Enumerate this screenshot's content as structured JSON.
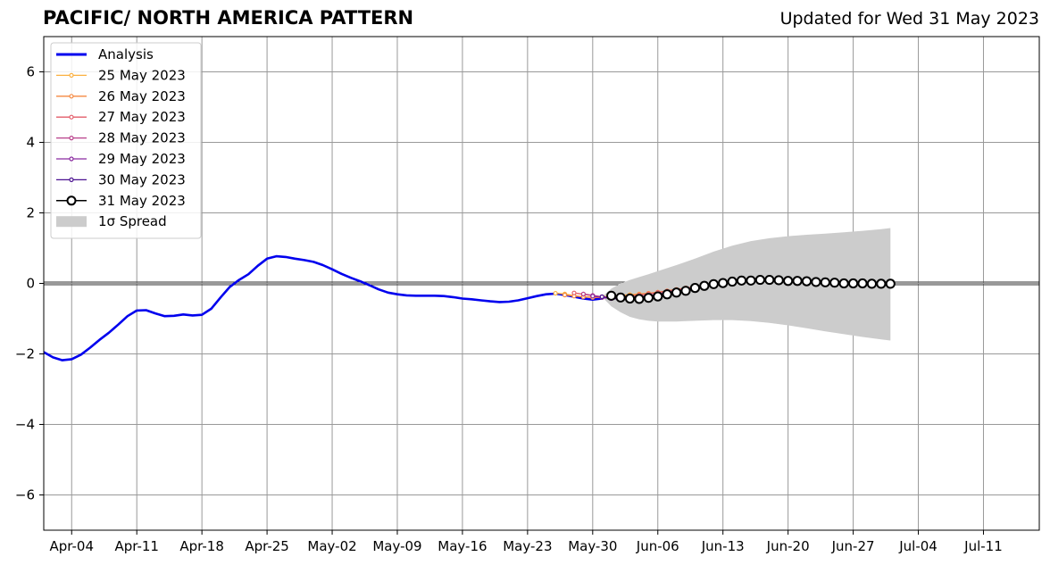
{
  "header": {
    "title": "PACIFIC/ NORTH AMERICA PATTERN",
    "updated": "Updated for Wed 31 May 2023"
  },
  "chart_data": {
    "type": "line",
    "title": "PACIFIC/ NORTH AMERICA PATTERN",
    "subtitle": "Updated for Wed 31 May 2023",
    "xlabel": "",
    "ylabel": "",
    "x_range": [
      "2023-04-01",
      "2023-07-17"
    ],
    "ylim": [
      -7,
      7
    ],
    "grid": true,
    "legend_position": "top-left",
    "x_ticks": [
      "Apr-04",
      "Apr-11",
      "Apr-18",
      "Apr-25",
      "May-02",
      "May-09",
      "May-16",
      "May-23",
      "May-30",
      "Jun-06",
      "Jun-13",
      "Jun-20",
      "Jun-27",
      "Jul-04",
      "Jul-11"
    ],
    "x_tick_dates": [
      "2023-04-04",
      "2023-04-11",
      "2023-04-18",
      "2023-04-25",
      "2023-05-02",
      "2023-05-09",
      "2023-05-16",
      "2023-05-23",
      "2023-05-30",
      "2023-06-06",
      "2023-06-13",
      "2023-06-20",
      "2023-06-27",
      "2023-07-04",
      "2023-07-11"
    ],
    "y_ticks": [
      -6,
      -4,
      -2,
      0,
      2,
      4,
      6
    ],
    "y_tick_labels": [
      "−6",
      "−4",
      "−2",
      "0",
      "2",
      "4",
      "6"
    ],
    "colors": {
      "analysis": "#0000ee",
      "forecast_obs": "#000000",
      "spread": "#cccccc",
      "grid": "#999999"
    },
    "legend": [
      {
        "label": "Analysis",
        "type": "line",
        "color": "#0000ee"
      },
      {
        "label": "25 May 2023",
        "type": "marker-line",
        "color": "#fbb040"
      },
      {
        "label": "26 May 2023",
        "type": "marker-line",
        "color": "#f58a42"
      },
      {
        "label": "27 May 2023",
        "type": "marker-line",
        "color": "#e35d6a"
      },
      {
        "label": "28 May 2023",
        "type": "marker-line",
        "color": "#b8408a"
      },
      {
        "label": "29 May 2023",
        "type": "marker-line",
        "color": "#8a2aa0"
      },
      {
        "label": "30 May 2023",
        "type": "marker-line",
        "color": "#4a1090"
      },
      {
        "label": "31 May 2023",
        "type": "circle-line",
        "color": "#000000"
      },
      {
        "label": "1σ Spread",
        "type": "patch",
        "color": "#cccccc"
      }
    ],
    "series": [
      {
        "name": "Analysis",
        "color": "#0000ee",
        "x": [
          "2023-04-01",
          "2023-04-02",
          "2023-04-03",
          "2023-04-04",
          "2023-04-05",
          "2023-04-06",
          "2023-04-07",
          "2023-04-08",
          "2023-04-09",
          "2023-04-10",
          "2023-04-11",
          "2023-04-12",
          "2023-04-13",
          "2023-04-14",
          "2023-04-15",
          "2023-04-16",
          "2023-04-17",
          "2023-04-18",
          "2023-04-19",
          "2023-04-20",
          "2023-04-21",
          "2023-04-22",
          "2023-04-23",
          "2023-04-24",
          "2023-04-25",
          "2023-04-26",
          "2023-04-27",
          "2023-04-28",
          "2023-04-29",
          "2023-04-30",
          "2023-05-01",
          "2023-05-02",
          "2023-05-03",
          "2023-05-04",
          "2023-05-05",
          "2023-05-06",
          "2023-05-07",
          "2023-05-08",
          "2023-05-09",
          "2023-05-10",
          "2023-05-11",
          "2023-05-12",
          "2023-05-13",
          "2023-05-14",
          "2023-05-15",
          "2023-05-16",
          "2023-05-17",
          "2023-05-18",
          "2023-05-19",
          "2023-05-20",
          "2023-05-21",
          "2023-05-22",
          "2023-05-23",
          "2023-05-24",
          "2023-05-25",
          "2023-05-26",
          "2023-05-27",
          "2023-05-28",
          "2023-05-29",
          "2023-05-30",
          "2023-05-31"
        ],
        "y": [
          -1.95,
          -2.1,
          -2.18,
          -2.15,
          -2.02,
          -1.82,
          -1.6,
          -1.4,
          -1.17,
          -0.93,
          -0.77,
          -0.76,
          -0.85,
          -0.93,
          -0.92,
          -0.88,
          -0.91,
          -0.89,
          -0.72,
          -0.4,
          -0.1,
          0.1,
          0.26,
          0.5,
          0.7,
          0.77,
          0.75,
          0.7,
          0.66,
          0.61,
          0.52,
          0.4,
          0.27,
          0.16,
          0.06,
          -0.05,
          -0.17,
          -0.26,
          -0.31,
          -0.34,
          -0.35,
          -0.35,
          -0.35,
          -0.36,
          -0.39,
          -0.43,
          -0.45,
          -0.48,
          -0.51,
          -0.53,
          -0.52,
          -0.48,
          -0.42,
          -0.36,
          -0.31,
          -0.29,
          -0.33,
          -0.38,
          -0.43,
          -0.46,
          -0.43
        ]
      },
      {
        "name": "25 May 2023",
        "color": "#fbb040",
        "x": [
          "2023-05-26",
          "2023-05-27",
          "2023-05-28",
          "2023-05-29",
          "2023-05-30",
          "2023-05-31",
          "2023-06-01",
          "2023-06-02",
          "2023-06-03",
          "2023-06-04",
          "2023-06-05",
          "2023-06-06",
          "2023-06-07",
          "2023-06-08",
          "2023-06-09",
          "2023-06-10",
          "2023-06-11",
          "2023-06-12",
          "2023-06-13",
          "2023-06-14",
          "2023-06-15",
          "2023-06-16",
          "2023-06-17",
          "2023-06-18"
        ],
        "y": [
          -0.28,
          -0.3,
          -0.35,
          -0.38,
          -0.39,
          -0.38,
          -0.36,
          -0.34,
          -0.32,
          -0.3,
          -0.28,
          -0.25,
          -0.22,
          -0.18,
          -0.14,
          -0.1,
          -0.06,
          -0.03,
          0.0,
          0.02,
          0.04,
          0.05,
          0.06,
          0.06
        ]
      },
      {
        "name": "26 May 2023",
        "color": "#f58a42",
        "x": [
          "2023-05-27",
          "2023-05-28",
          "2023-05-29",
          "2023-05-30",
          "2023-05-31",
          "2023-06-01",
          "2023-06-02",
          "2023-06-03",
          "2023-06-04",
          "2023-06-05",
          "2023-06-06",
          "2023-06-07",
          "2023-06-08",
          "2023-06-09",
          "2023-06-10",
          "2023-06-11",
          "2023-06-12",
          "2023-06-13",
          "2023-06-14",
          "2023-06-15",
          "2023-06-16",
          "2023-06-17",
          "2023-06-18",
          "2023-06-19"
        ],
        "y": [
          -0.33,
          -0.36,
          -0.38,
          -0.4,
          -0.4,
          -0.38,
          -0.36,
          -0.34,
          -0.31,
          -0.28,
          -0.25,
          -0.21,
          -0.17,
          -0.13,
          -0.09,
          -0.05,
          -0.02,
          0.01,
          0.03,
          0.05,
          0.06,
          0.07,
          0.07,
          0.07
        ]
      },
      {
        "name": "27 May 2023",
        "color": "#e35d6a",
        "x": [
          "2023-05-28",
          "2023-05-29",
          "2023-05-30",
          "2023-05-31",
          "2023-06-01",
          "2023-06-02",
          "2023-06-03",
          "2023-06-04",
          "2023-06-05",
          "2023-06-06",
          "2023-06-07",
          "2023-06-08",
          "2023-06-09",
          "2023-06-10",
          "2023-06-11",
          "2023-06-12",
          "2023-06-13",
          "2023-06-14",
          "2023-06-15",
          "2023-06-16",
          "2023-06-17",
          "2023-06-18",
          "2023-06-19",
          "2023-06-20"
        ],
        "y": [
          -0.27,
          -0.31,
          -0.35,
          -0.38,
          -0.39,
          -0.38,
          -0.36,
          -0.33,
          -0.3,
          -0.26,
          -0.22,
          -0.18,
          -0.14,
          -0.1,
          -0.06,
          -0.03,
          0.0,
          0.03,
          0.05,
          0.07,
          0.08,
          0.08,
          0.08,
          0.07
        ]
      },
      {
        "name": "28 May 2023",
        "color": "#b8408a",
        "x": [
          "2023-05-29",
          "2023-05-30",
          "2023-05-31",
          "2023-06-01",
          "2023-06-02",
          "2023-06-03",
          "2023-06-04",
          "2023-06-05",
          "2023-06-06",
          "2023-06-07",
          "2023-06-08",
          "2023-06-09",
          "2023-06-10",
          "2023-06-11",
          "2023-06-12",
          "2023-06-13",
          "2023-06-14",
          "2023-06-15",
          "2023-06-16",
          "2023-06-17",
          "2023-06-18",
          "2023-06-19",
          "2023-06-20",
          "2023-06-21"
        ],
        "y": [
          -0.3,
          -0.34,
          -0.38,
          -0.41,
          -0.42,
          -0.41,
          -0.38,
          -0.35,
          -0.31,
          -0.27,
          -0.22,
          -0.17,
          -0.12,
          -0.08,
          -0.04,
          0.0,
          0.03,
          0.06,
          0.08,
          0.09,
          0.09,
          0.09,
          0.08,
          0.07
        ]
      },
      {
        "name": "29 May 2023",
        "color": "#8a2aa0",
        "x": [
          "2023-05-30",
          "2023-05-31",
          "2023-06-01",
          "2023-06-02",
          "2023-06-03",
          "2023-06-04",
          "2023-06-05",
          "2023-06-06",
          "2023-06-07",
          "2023-06-08",
          "2023-06-09",
          "2023-06-10",
          "2023-06-11",
          "2023-06-12",
          "2023-06-13",
          "2023-06-14",
          "2023-06-15",
          "2023-06-16",
          "2023-06-17",
          "2023-06-18",
          "2023-06-19",
          "2023-06-20",
          "2023-06-21",
          "2023-06-22"
        ],
        "y": [
          -0.36,
          -0.4,
          -0.43,
          -0.44,
          -0.43,
          -0.4,
          -0.36,
          -0.31,
          -0.26,
          -0.21,
          -0.16,
          -0.11,
          -0.06,
          -0.02,
          0.02,
          0.05,
          0.08,
          0.09,
          0.1,
          0.1,
          0.09,
          0.08,
          0.07,
          0.06
        ]
      },
      {
        "name": "30 May 2023",
        "color": "#4a1090",
        "x": [
          "2023-05-31",
          "2023-06-01",
          "2023-06-02",
          "2023-06-03",
          "2023-06-04",
          "2023-06-05",
          "2023-06-06",
          "2023-06-07",
          "2023-06-08",
          "2023-06-09",
          "2023-06-10",
          "2023-06-11",
          "2023-06-12",
          "2023-06-13",
          "2023-06-14",
          "2023-06-15",
          "2023-06-16",
          "2023-06-17",
          "2023-06-18",
          "2023-06-19",
          "2023-06-20",
          "2023-06-21",
          "2023-06-22",
          "2023-06-23"
        ],
        "y": [
          -0.38,
          -0.42,
          -0.45,
          -0.46,
          -0.44,
          -0.4,
          -0.35,
          -0.29,
          -0.23,
          -0.17,
          -0.11,
          -0.06,
          -0.01,
          0.03,
          0.06,
          0.08,
          0.1,
          0.1,
          0.1,
          0.09,
          0.08,
          0.07,
          0.05,
          0.04
        ]
      },
      {
        "name": "31 May 2023",
        "color": "#000000",
        "x": [
          "2023-06-01",
          "2023-06-02",
          "2023-06-03",
          "2023-06-04",
          "2023-06-05",
          "2023-06-06",
          "2023-06-07",
          "2023-06-08",
          "2023-06-09",
          "2023-06-10",
          "2023-06-11",
          "2023-06-12",
          "2023-06-13",
          "2023-06-14",
          "2023-06-15",
          "2023-06-16",
          "2023-06-17",
          "2023-06-18",
          "2023-06-19",
          "2023-06-20",
          "2023-06-21",
          "2023-06-22",
          "2023-06-23",
          "2023-06-24",
          "2023-06-25",
          "2023-06-26",
          "2023-06-27",
          "2023-06-28",
          "2023-06-29",
          "2023-06-30",
          "2023-07-01"
        ],
        "y": [
          -0.35,
          -0.4,
          -0.43,
          -0.44,
          -0.41,
          -0.37,
          -0.31,
          -0.26,
          -0.21,
          -0.13,
          -0.07,
          -0.02,
          0.01,
          0.05,
          0.08,
          0.08,
          0.1,
          0.1,
          0.09,
          0.07,
          0.07,
          0.06,
          0.04,
          0.03,
          0.02,
          0.0,
          0.0,
          0.0,
          -0.01,
          -0.01,
          -0.01
        ]
      }
    ],
    "spread": {
      "name": "1σ Spread",
      "color": "#cccccc",
      "x": [
        "2023-05-31",
        "2023-06-01",
        "2023-06-02",
        "2023-06-03",
        "2023-06-04",
        "2023-06-05",
        "2023-06-06",
        "2023-06-08",
        "2023-06-10",
        "2023-06-12",
        "2023-06-14",
        "2023-06-16",
        "2023-06-18",
        "2023-06-20",
        "2023-06-22",
        "2023-06-24",
        "2023-06-26",
        "2023-06-28",
        "2023-06-30",
        "2023-07-01"
      ],
      "upper": [
        -0.38,
        -0.15,
        0.0,
        0.1,
        0.18,
        0.26,
        0.35,
        0.52,
        0.7,
        0.9,
        1.07,
        1.2,
        1.28,
        1.34,
        1.38,
        1.41,
        1.45,
        1.49,
        1.54,
        1.57
      ],
      "lower": [
        -0.38,
        -0.65,
        -0.82,
        -0.95,
        -1.02,
        -1.06,
        -1.08,
        -1.08,
        -1.06,
        -1.04,
        -1.04,
        -1.07,
        -1.12,
        -1.19,
        -1.27,
        -1.36,
        -1.44,
        -1.52,
        -1.59,
        -1.62
      ]
    }
  }
}
